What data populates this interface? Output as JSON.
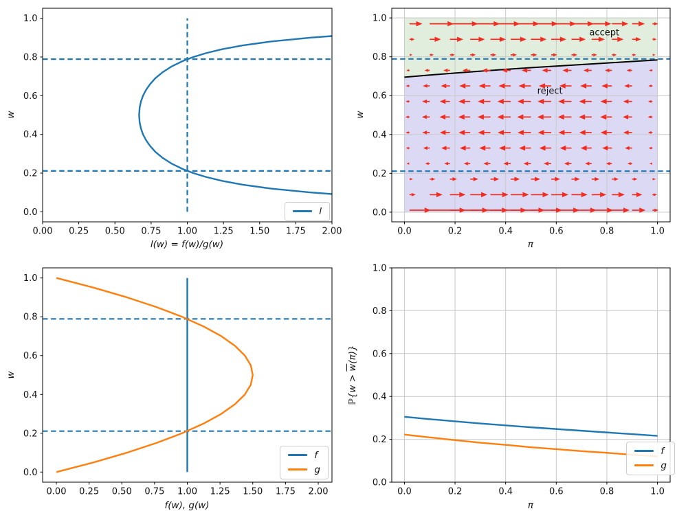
{
  "colors": {
    "blue": "#1f77b4",
    "orange": "#ff7f0e",
    "red": "#ef2e21",
    "black": "#000000",
    "grid": "#c9c9c9",
    "accept_fill": "#e2eedd",
    "reject_fill": "#dcd9f5"
  },
  "chart_data": [
    {
      "id": "likelihood-ratio",
      "type": "line",
      "grid": false,
      "xlabel": "l(w) = f(w)/g(w)",
      "ylabel": "w",
      "xlim": [
        0,
        2
      ],
      "ylim": [
        -0.052,
        1.052
      ],
      "xticks": {
        "values": [
          0,
          0.25,
          0.5,
          0.75,
          1,
          1.25,
          1.5,
          1.75,
          2
        ],
        "labels": [
          "0.00",
          "0.25",
          "0.50",
          "0.75",
          "1.00",
          "1.25",
          "1.50",
          "1.75",
          "2.00"
        ]
      },
      "yticks": {
        "values": [
          0,
          0.2,
          0.4,
          0.6,
          0.8,
          1
        ],
        "labels": [
          "0.0",
          "0.2",
          "0.4",
          "0.6",
          "0.8",
          "1.0"
        ]
      },
      "guides": [
        {
          "kind": "hline",
          "y": 0.789,
          "color": "#1f77b4"
        },
        {
          "kind": "hline",
          "y": 0.211,
          "color": "#1f77b4"
        },
        {
          "kind": "vline",
          "x": 1.0,
          "y0": 0.0,
          "y1": 1.0,
          "color": "#1f77b4"
        }
      ],
      "series": [
        {
          "name": "l",
          "color": "#1f77b4",
          "points": [
            [
              2.0,
              0.0918
            ],
            [
              1.852,
              0.1
            ],
            [
              1.578,
              0.12
            ],
            [
              1.384,
              0.14
            ],
            [
              1.24,
              0.16
            ],
            [
              1.129,
              0.18
            ],
            [
              1.042,
              0.2
            ],
            [
              0.971,
              0.22
            ],
            [
              0.889,
              0.25
            ],
            [
              0.827,
              0.28
            ],
            [
              0.779,
              0.31
            ],
            [
              0.743,
              0.34
            ],
            [
              0.715,
              0.37
            ],
            [
              0.694,
              0.4
            ],
            [
              0.68,
              0.43
            ],
            [
              0.671,
              0.46
            ],
            [
              0.667,
              0.5
            ],
            [
              0.671,
              0.54
            ],
            [
              0.68,
              0.57
            ],
            [
              0.694,
              0.6
            ],
            [
              0.715,
              0.63
            ],
            [
              0.743,
              0.66
            ],
            [
              0.779,
              0.69
            ],
            [
              0.827,
              0.72
            ],
            [
              0.889,
              0.75
            ],
            [
              0.971,
              0.78
            ],
            [
              1.042,
              0.8
            ],
            [
              1.129,
              0.82
            ],
            [
              1.24,
              0.84
            ],
            [
              1.384,
              0.86
            ],
            [
              1.578,
              0.88
            ],
            [
              1.852,
              0.9
            ],
            [
              2.0,
              0.9082
            ]
          ]
        }
      ],
      "legend": {
        "position": "lower right",
        "entries": [
          {
            "label": "l",
            "color": "#1f77b4"
          }
        ]
      }
    },
    {
      "id": "accept-reject-regions",
      "type": "quiver-regions",
      "grid": true,
      "xlabel": "π",
      "ylabel": "w",
      "xlim": [
        -0.05,
        1.05
      ],
      "ylim": [
        -0.05,
        1.05
      ],
      "xticks": {
        "values": [
          0,
          0.2,
          0.4,
          0.6,
          0.8,
          1
        ],
        "labels": [
          "0.0",
          "0.2",
          "0.4",
          "0.6",
          "0.8",
          "1.0"
        ]
      },
      "yticks": {
        "values": [
          0,
          0.2,
          0.4,
          0.6,
          0.8,
          1
        ],
        "labels": [
          "0.0",
          "0.2",
          "0.4",
          "0.6",
          "0.8",
          "1.0"
        ]
      },
      "guides": [
        {
          "kind": "hline",
          "y": 0.789,
          "color": "#1f77b4"
        },
        {
          "kind": "hline",
          "y": 0.211,
          "color": "#1f77b4"
        }
      ],
      "boundary": {
        "color": "#000000",
        "x": [
          0,
          0.1,
          0.2,
          0.3,
          0.4,
          0.5,
          0.6,
          0.7,
          0.8,
          0.9,
          1.0
        ],
        "y": [
          0.695,
          0.706,
          0.716,
          0.726,
          0.735,
          0.744,
          0.752,
          0.76,
          0.768,
          0.776,
          0.784
        ]
      },
      "regions": {
        "accept": {
          "label": "accept",
          "fill": "#e2eedd",
          "label_xy": [
            0.79,
            0.922
          ]
        },
        "reject": {
          "label": "reject",
          "fill": "#dcd9f5",
          "label_xy": [
            0.575,
            0.622
          ]
        }
      },
      "quiver": {
        "color": "#ef2e21",
        "x": [
          0.02,
          0.1,
          0.18,
          0.26,
          0.34,
          0.42,
          0.5,
          0.58,
          0.66,
          0.74,
          0.82,
          0.9,
          0.98
        ],
        "y": [
          0.01,
          0.09,
          0.17,
          0.25,
          0.33,
          0.41,
          0.49,
          0.57,
          0.65,
          0.73,
          0.81,
          0.89,
          0.97
        ],
        "u": [
          [
            0.236,
            0.552,
            0.607,
            0.595,
            0.557,
            0.504,
            0.444,
            0.379,
            0.31,
            0.24,
            0.167,
            0.093,
            0.019
          ],
          [
            0.02,
            0.084,
            0.129,
            0.157,
            0.172,
            0.176,
            0.171,
            0.158,
            0.138,
            0.113,
            0.083,
            0.048,
            0.01
          ],
          [
            0.004,
            0.016,
            0.026,
            0.033,
            0.038,
            0.041,
            0.042,
            0.04,
            0.036,
            0.031,
            0.023,
            0.014,
            0.003
          ],
          [
            -0.002,
            -0.01,
            -0.017,
            -0.022,
            -0.026,
            -0.028,
            -0.029,
            -0.029,
            -0.027,
            -0.023,
            -0.018,
            -0.011,
            -0.002
          ],
          [
            -0.005,
            -0.023,
            -0.038,
            -0.051,
            -0.06,
            -0.067,
            -0.07,
            -0.07,
            -0.066,
            -0.058,
            -0.046,
            -0.028,
            -0.006
          ],
          [
            -0.006,
            -0.029,
            -0.049,
            -0.065,
            -0.078,
            -0.087,
            -0.092,
            -0.092,
            -0.088,
            -0.078,
            -0.062,
            -0.039,
            -0.009
          ],
          [
            -0.007,
            -0.031,
            -0.052,
            -0.07,
            -0.084,
            -0.094,
            -0.1,
            -0.101,
            -0.096,
            -0.085,
            -0.068,
            -0.043,
            -0.01
          ],
          [
            -0.006,
            -0.03,
            -0.05,
            -0.067,
            -0.081,
            -0.09,
            -0.095,
            -0.096,
            -0.091,
            -0.081,
            -0.064,
            -0.04,
            -0.009
          ],
          [
            -0.005,
            -0.025,
            -0.041,
            -0.055,
            -0.066,
            -0.073,
            -0.077,
            -0.077,
            -0.073,
            -0.064,
            -0.051,
            -0.032,
            -0.007
          ],
          [
            -0.003,
            -0.014,
            -0.023,
            -0.031,
            -0.037,
            -0.04,
            -0.042,
            -0.041,
            -0.039,
            -0.034,
            -0.026,
            -0.016,
            -0.004
          ],
          [
            0.002,
            0.007,
            0.012,
            0.016,
            0.018,
            0.02,
            0.02,
            0.019,
            0.018,
            0.015,
            0.011,
            0.007,
            0.002
          ],
          [
            0.014,
            0.059,
            0.092,
            0.114,
            0.127,
            0.132,
            0.13,
            0.122,
            0.108,
            0.089,
            0.066,
            0.039,
            0.008
          ],
          [
            0.085,
            0.289,
            0.377,
            0.408,
            0.407,
            0.386,
            0.351,
            0.308,
            0.258,
            0.202,
            0.143,
            0.081,
            0.017
          ]
        ]
      }
    },
    {
      "id": "densities",
      "type": "line",
      "grid": false,
      "xlabel": "f(w), g(w)",
      "ylabel": "w",
      "xlim": [
        -0.105,
        2.105
      ],
      "ylim": [
        -0.052,
        1.052
      ],
      "xticks": {
        "values": [
          0,
          0.25,
          0.5,
          0.75,
          1,
          1.25,
          1.5,
          1.75,
          2
        ],
        "labels": [
          "0.00",
          "0.25",
          "0.50",
          "0.75",
          "1.00",
          "1.25",
          "1.50",
          "1.75",
          "2.00"
        ]
      },
      "yticks": {
        "values": [
          0,
          0.2,
          0.4,
          0.6,
          0.8,
          1
        ],
        "labels": [
          "0.0",
          "0.2",
          "0.4",
          "0.6",
          "0.8",
          "1.0"
        ]
      },
      "guides": [
        {
          "kind": "hline",
          "y": 0.789,
          "color": "#1f77b4"
        },
        {
          "kind": "hline",
          "y": 0.211,
          "color": "#1f77b4"
        }
      ],
      "series": [
        {
          "name": "f",
          "color": "#1f77b4",
          "points": [
            [
              1,
              0
            ],
            [
              1,
              1
            ]
          ]
        },
        {
          "name": "g",
          "color": "#ff7f0e",
          "points": [
            [
              0,
              0
            ],
            [
              0.285,
              0.05
            ],
            [
              0.54,
              0.1
            ],
            [
              0.765,
              0.15
            ],
            [
              0.96,
              0.2
            ],
            [
              1.125,
              0.25
            ],
            [
              1.26,
              0.3
            ],
            [
              1.365,
              0.35
            ],
            [
              1.44,
              0.4
            ],
            [
              1.485,
              0.45
            ],
            [
              1.5,
              0.5
            ],
            [
              1.485,
              0.55
            ],
            [
              1.44,
              0.6
            ],
            [
              1.365,
              0.65
            ],
            [
              1.26,
              0.7
            ],
            [
              1.125,
              0.75
            ],
            [
              0.96,
              0.8
            ],
            [
              0.765,
              0.85
            ],
            [
              0.54,
              0.9
            ],
            [
              0.285,
              0.95
            ],
            [
              0,
              1
            ]
          ]
        }
      ],
      "legend": {
        "position": "lower right",
        "entries": [
          {
            "label": "f",
            "color": "#1f77b4"
          },
          {
            "label": "g",
            "color": "#ff7f0e"
          }
        ]
      }
    },
    {
      "id": "acceptance-probability",
      "type": "line",
      "grid": true,
      "xlabel": "π",
      "ylabel": "ℙ{w > w̄(π)}",
      "ylabel_parts": {
        "prefix": "ℙ{w > ",
        "overline": "w",
        "suffix": "(π)}"
      },
      "xlim": [
        -0.05,
        1.05
      ],
      "ylim": [
        0,
        1
      ],
      "xticks": {
        "values": [
          0,
          0.2,
          0.4,
          0.6,
          0.8,
          1
        ],
        "labels": [
          "0.0",
          "0.2",
          "0.4",
          "0.6",
          "0.8",
          "1.0"
        ]
      },
      "yticks": {
        "values": [
          0,
          0.2,
          0.4,
          0.6,
          0.8,
          1
        ],
        "labels": [
          "0.0",
          "0.2",
          "0.4",
          "0.6",
          "0.8",
          "1.0"
        ]
      },
      "guides": [],
      "series": [
        {
          "name": "f",
          "color": "#1f77b4",
          "points": [
            [
              0,
              0.305
            ],
            [
              0.1,
              0.294
            ],
            [
              0.2,
              0.284
            ],
            [
              0.3,
              0.274
            ],
            [
              0.4,
              0.265
            ],
            [
              0.5,
              0.256
            ],
            [
              0.6,
              0.248
            ],
            [
              0.7,
              0.24
            ],
            [
              0.8,
              0.232
            ],
            [
              0.9,
              0.224
            ],
            [
              1,
              0.216
            ]
          ]
        },
        {
          "name": "g",
          "color": "#ff7f0e",
          "points": [
            [
              0,
              0.222
            ],
            [
              0.1,
              0.209
            ],
            [
              0.2,
              0.196
            ],
            [
              0.3,
              0.184
            ],
            [
              0.4,
              0.174
            ],
            [
              0.5,
              0.163
            ],
            [
              0.6,
              0.154
            ],
            [
              0.7,
              0.145
            ],
            [
              0.8,
              0.137
            ],
            [
              0.9,
              0.128
            ],
            [
              1,
              0.12
            ]
          ]
        }
      ],
      "legend": {
        "position": "lower right",
        "entries": [
          {
            "label": "f",
            "color": "#1f77b4"
          },
          {
            "label": "g",
            "color": "#ff7f0e"
          }
        ]
      }
    }
  ]
}
